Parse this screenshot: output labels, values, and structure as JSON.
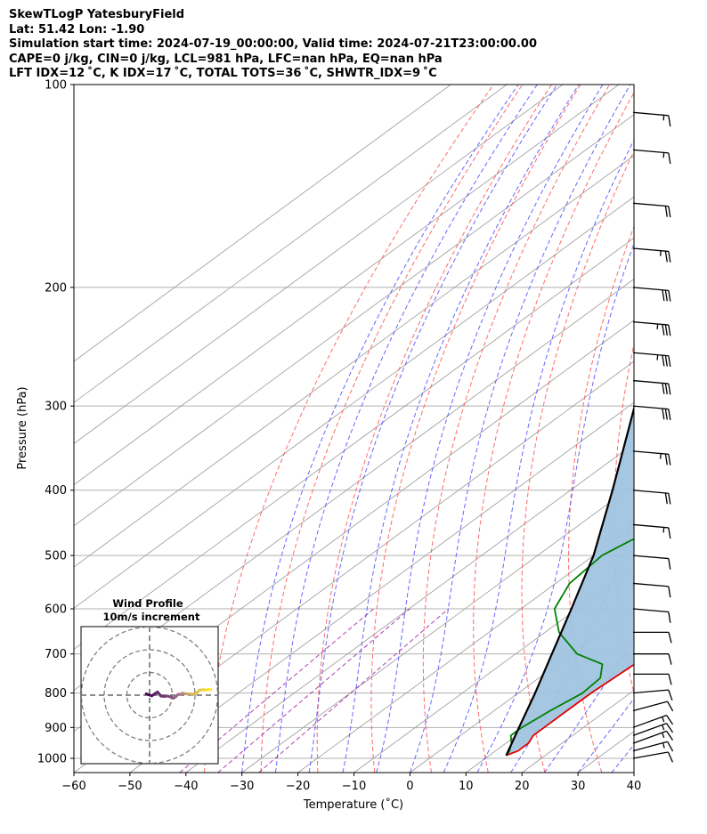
{
  "title": {
    "line1": "SkewTLogP YatesburyField",
    "line2": "Lat: 51.42   Lon: -1.90",
    "line3": "Simulation start time: 2024-07-19_00:00:00, Valid time: 2024-07-21T23:00:00.00",
    "line4": "CAPE=0 j/kg, CIN=0 j/kg, LCL=981 hPa, LFC=nan hPa, EQ=nan hPa",
    "line5": "LFT IDX=12 ˚C, K IDX=17 ˚C, TOTAL TOTS=36 ˚C, SHWTR_IDX=9 ˚C"
  },
  "chart_data": {
    "type": "line",
    "xlabel": "Temperature (˚C)",
    "ylabel": "Pressure (hPa)",
    "xlim": [
      -60,
      40
    ],
    "ylim": [
      1050,
      100
    ],
    "y_scale": "log",
    "grid": true,
    "x_ticks": [
      "−60",
      "−50",
      "−40",
      "−30",
      "−20",
      "−10",
      "0",
      "10",
      "20",
      "30",
      "40"
    ],
    "y_ticks": [
      "1000",
      "900",
      "800",
      "700",
      "600",
      "500",
      "400",
      "300",
      "200",
      "100"
    ],
    "series": [
      {
        "color": "#e00000",
        "p": [
          990,
          975,
          950,
          925,
          900,
          850,
          800,
          750,
          700,
          650,
          600,
          550,
          500,
          450,
          400,
          350,
          300,
          250,
          225,
          200,
          175,
          150,
          125,
          110,
          100
        ],
        "t": [
          13,
          14,
          14,
          13,
          13,
          13,
          13,
          13.5,
          14,
          14,
          13,
          10.5,
          6.5,
          1.5,
          -4.5,
          -10.5,
          -18,
          -27.5,
          -31,
          -36,
          -43.5,
          -51,
          -58,
          -64,
          -68
        ]
      },
      {
        "color": "#008000",
        "p": [
          990,
          975,
          950,
          925,
          900,
          875,
          850,
          800,
          760,
          725,
          700,
          650,
          600,
          550,
          500,
          475,
          450,
          425,
          400,
          350,
          300,
          250,
          200,
          185,
          175,
          160,
          150,
          125,
          100
        ],
        "t": [
          13,
          12.5,
          11,
          9,
          9,
          9.5,
          10,
          11.5,
          11,
          8,
          1,
          -7.5,
          -14,
          -17.5,
          -18.5,
          -17,
          -14,
          -12,
          -11,
          -12,
          -13.5,
          -16.5,
          -21,
          -20,
          -21,
          -25.5,
          -28.5,
          -34,
          -40
        ]
      },
      {
        "color": "#000000",
        "p": [
          990,
          900,
          800,
          700,
          600,
          500,
          400,
          300,
          250,
          200,
          150,
          100
        ],
        "t": [
          13,
          8.5,
          3,
          -3.5,
          -11,
          -20,
          -32.5,
          -49,
          -60,
          -73,
          -90,
          -115
        ]
      }
    ],
    "cape_cin_fill_color": "#a0c4e0",
    "dry_adiabat_color": "#ff5050",
    "moist_adiabat_color": "#4040ff",
    "mixing_ratio_color": "#a020a0",
    "isotherm_color": "#999999",
    "wind_barbs": {
      "color": "#000000",
      "p": [
        1000,
        975,
        950,
        925,
        900,
        850,
        800,
        750,
        700,
        650,
        600,
        550,
        500,
        450,
        400,
        350,
        300,
        275,
        250,
        225,
        200,
        175,
        150,
        125,
        110
      ],
      "speed_kt": [
        10,
        15,
        15,
        15,
        15,
        10,
        10,
        10,
        10,
        10,
        10,
        10,
        10,
        15,
        20,
        25,
        30,
        30,
        35,
        35,
        30,
        25,
        20,
        15,
        15
      ],
      "dir_deg": [
        260,
        255,
        250,
        250,
        250,
        255,
        265,
        270,
        270,
        270,
        275,
        275,
        275,
        275,
        275,
        275,
        275,
        275,
        275,
        275,
        275,
        275,
        275,
        275,
        275
      ]
    },
    "inset": {
      "title": "Wind Profile",
      "subtitle": "10m/s increment",
      "ring_step": 10,
      "u": [
        -1.5,
        -0.5,
        1.0,
        2.0,
        3.5,
        5.0,
        6.5,
        8.0,
        9.5,
        10.5,
        11.5,
        12.5,
        13.5,
        14.0,
        14.5,
        15.0,
        16.0,
        17.5,
        19.0,
        20.5,
        22.0,
        23.5,
        25.0,
        26.0,
        27.0
      ],
      "v": [
        0.6,
        0.2,
        -0.3,
        0.4,
        1.4,
        -0.4,
        -0.6,
        -0.4,
        -0.9,
        -1.3,
        -0.7,
        0.3,
        0.4,
        0.6,
        0.9,
        0.8,
        0.6,
        0.5,
        0.4,
        0.7,
        2.2,
        2.4,
        2.3,
        2.5,
        2.4
      ]
    }
  }
}
